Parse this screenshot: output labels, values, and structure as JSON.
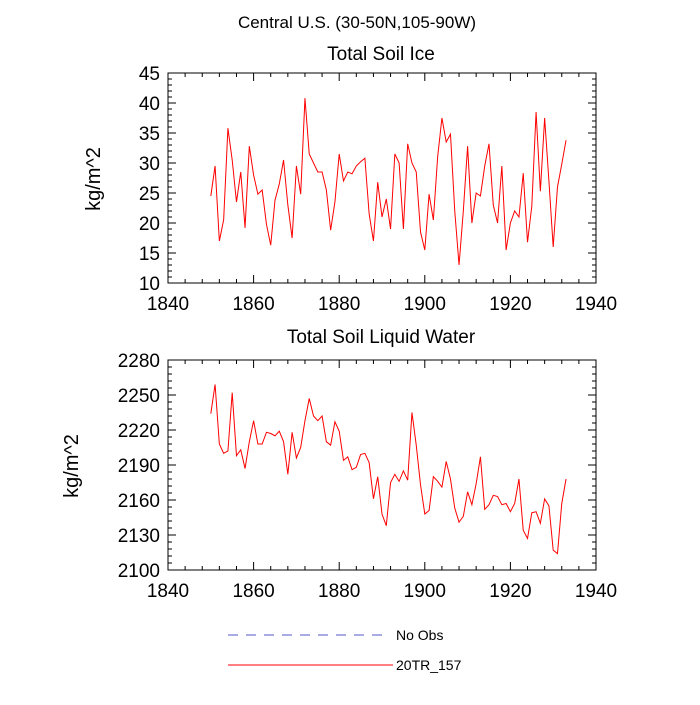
{
  "figure": {
    "title": "Central U.S. (30-50N,105-90W)",
    "legend": [
      {
        "label": "No Obs",
        "color": "#5555cc",
        "dashed": true
      },
      {
        "label": "20TR_157",
        "color": "#ff0000",
        "dashed": false
      }
    ]
  },
  "chart_data": [
    {
      "type": "line",
      "title": "Total Soil Ice",
      "xlabel": "",
      "ylabel": "kg/m^2",
      "xlim": [
        1840,
        1940
      ],
      "ylim": [
        10,
        45
      ],
      "xticks": [
        1840,
        1860,
        1880,
        1900,
        1920,
        1940
      ],
      "yticks": [
        10,
        15,
        20,
        25,
        30,
        35,
        40,
        45
      ],
      "x_start": 1850,
      "series": [
        {
          "name": "20TR_157",
          "color": "#ff0000",
          "values": [
            24.5,
            29.5,
            17.0,
            20.5,
            35.8,
            30.5,
            23.5,
            28.5,
            19.2,
            32.8,
            28.0,
            24.8,
            25.5,
            19.8,
            16.3,
            23.8,
            26.5,
            30.5,
            23.0,
            17.5,
            29.5,
            24.8,
            40.8,
            31.5,
            30.0,
            28.5,
            28.5,
            25.5,
            18.8,
            23.5,
            31.5,
            27.0,
            28.5,
            28.2,
            29.5,
            30.2,
            30.8,
            21.5,
            17.0,
            26.8,
            21.0,
            24.0,
            19.0,
            31.5,
            30.0,
            19.0,
            33.2,
            30.0,
            28.5,
            18.5,
            15.5,
            24.8,
            20.5,
            31.0,
            37.5,
            33.5,
            34.8,
            22.0,
            13.0,
            22.0,
            32.8,
            20.0,
            25.0,
            24.5,
            29.5,
            33.2,
            23.0,
            20.0,
            29.5,
            15.5,
            20.0,
            22.0,
            21.0,
            28.3,
            16.8,
            22.8,
            38.5,
            25.3,
            37.5,
            27.0,
            16.0,
            26.0,
            29.8,
            33.8
          ]
        }
      ]
    },
    {
      "type": "line",
      "title": "Total Soil Liquid Water",
      "xlabel": "",
      "ylabel": "kg/m^2",
      "xlim": [
        1840,
        1940
      ],
      "ylim": [
        2100,
        2280
      ],
      "xticks": [
        1840,
        1860,
        1880,
        1900,
        1920,
        1940
      ],
      "yticks": [
        2100,
        2130,
        2160,
        2190,
        2220,
        2250,
        2280
      ],
      "x_start": 1850,
      "series": [
        {
          "name": "20TR_157",
          "color": "#ff0000",
          "values": [
            2234,
            2259,
            2208,
            2200,
            2202,
            2252,
            2198,
            2203,
            2187,
            2210,
            2228,
            2208,
            2208,
            2218,
            2217,
            2215,
            2219,
            2210,
            2182,
            2218,
            2196,
            2205,
            2228,
            2247,
            2232,
            2228,
            2232,
            2210,
            2207,
            2227,
            2219,
            2194,
            2197,
            2186,
            2188,
            2199,
            2200,
            2192,
            2161,
            2180,
            2148,
            2138,
            2175,
            2182,
            2176,
            2185,
            2177,
            2235,
            2207,
            2173,
            2148,
            2151,
            2180,
            2176,
            2171,
            2193,
            2178,
            2153,
            2141,
            2146,
            2167,
            2156,
            2174,
            2197,
            2152,
            2156,
            2164,
            2163,
            2156,
            2157,
            2150,
            2157,
            2178,
            2134,
            2127,
            2149,
            2150,
            2140,
            2161,
            2155,
            2117,
            2114,
            2157,
            2178
          ]
        }
      ]
    }
  ]
}
